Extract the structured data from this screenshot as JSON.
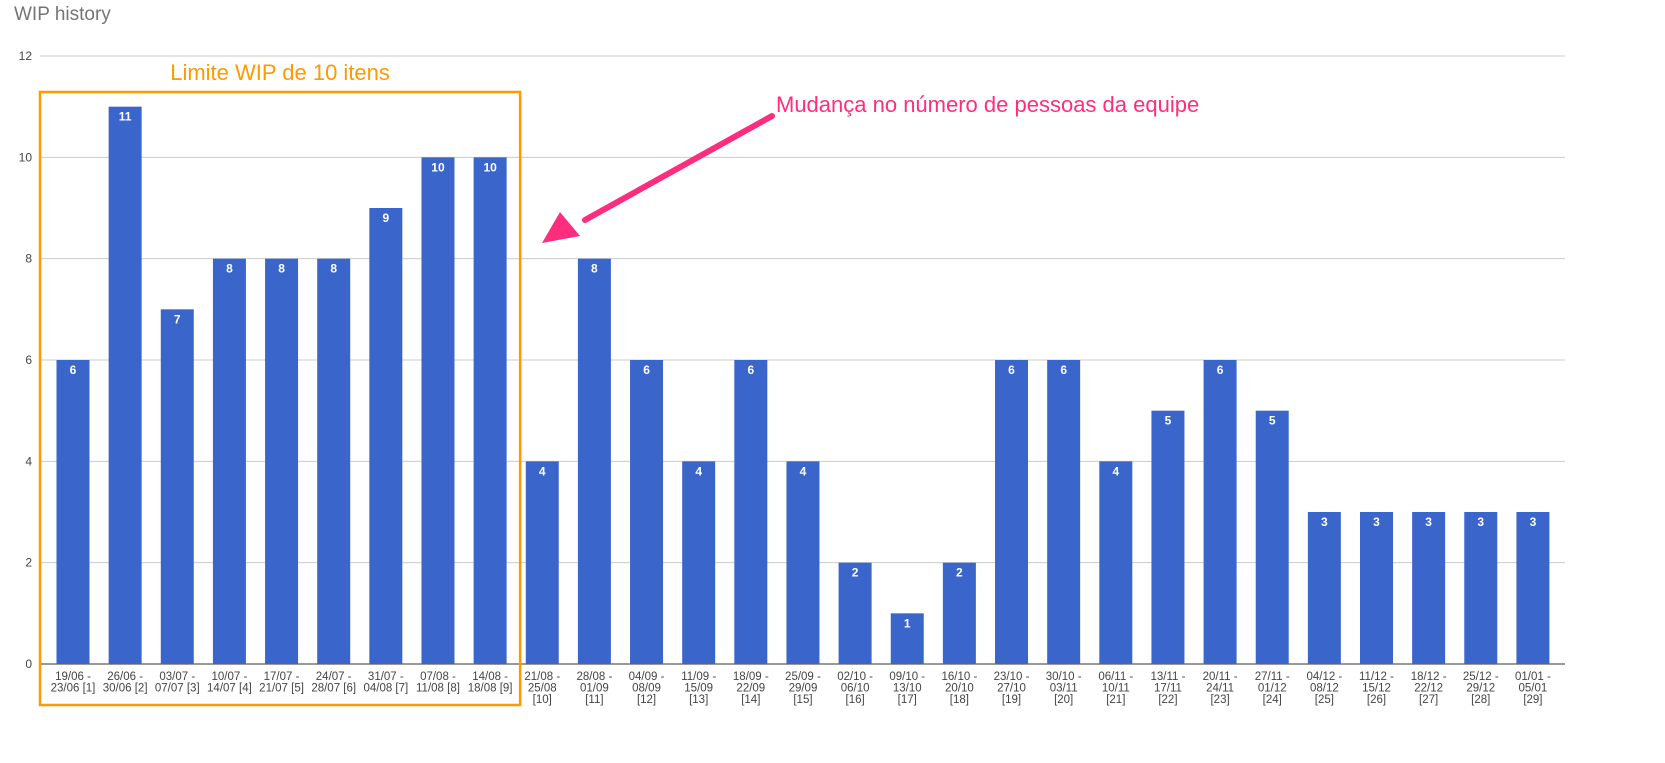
{
  "chart_data": {
    "type": "bar",
    "title": "WIP history",
    "categories": [
      [
        "19/06 -",
        "23/06 [1]"
      ],
      [
        "26/06 -",
        "30/06 [2]"
      ],
      [
        "03/07 -",
        "07/07 [3]"
      ],
      [
        "10/07 -",
        "14/07 [4]"
      ],
      [
        "17/07 -",
        "21/07 [5]"
      ],
      [
        "24/07 -",
        "28/07 [6]"
      ],
      [
        "31/07 -",
        "04/08 [7]"
      ],
      [
        "07/08 -",
        "11/08 [8]"
      ],
      [
        "14/08 -",
        "18/08 [9]"
      ],
      [
        "21/08 -",
        "25/08",
        "[10]"
      ],
      [
        "28/08 -",
        "01/09",
        "[11]"
      ],
      [
        "04/09 -",
        "08/09",
        "[12]"
      ],
      [
        "11/09 -",
        "15/09",
        "[13]"
      ],
      [
        "18/09 -",
        "22/09",
        "[14]"
      ],
      [
        "25/09 -",
        "29/09",
        "[15]"
      ],
      [
        "02/10 -",
        "06/10",
        "[16]"
      ],
      [
        "09/10 -",
        "13/10",
        "[17]"
      ],
      [
        "16/10 -",
        "20/10",
        "[18]"
      ],
      [
        "23/10 -",
        "27/10",
        "[19]"
      ],
      [
        "30/10 -",
        "03/11",
        "[20]"
      ],
      [
        "06/11 -",
        "10/11",
        "[21]"
      ],
      [
        "13/11 -",
        "17/11",
        "[22]"
      ],
      [
        "20/11 -",
        "24/11",
        "[23]"
      ],
      [
        "27/11 -",
        "01/12",
        "[24]"
      ],
      [
        "04/12 -",
        "08/12",
        "[25]"
      ],
      [
        "11/12 -",
        "15/12",
        "[26]"
      ],
      [
        "18/12 -",
        "22/12",
        "[27]"
      ],
      [
        "25/12 -",
        "29/12",
        "[28]"
      ],
      [
        "01/01 -",
        "05/01",
        "[29]"
      ]
    ],
    "values": [
      6,
      11,
      7,
      8,
      8,
      8,
      9,
      10,
      10,
      4,
      8,
      6,
      4,
      6,
      4,
      2,
      1,
      2,
      6,
      6,
      4,
      5,
      6,
      5,
      3,
      3,
      3,
      3,
      3
    ],
    "ylim": [
      0,
      12
    ],
    "yticks": [
      0,
      2,
      4,
      6,
      8,
      10,
      12
    ],
    "grid": true,
    "bar_color": "#3a66cc",
    "annotations": {
      "wip_limit_label": "Limite WIP de 10 itens",
      "wip_limit_color": "#ff9900",
      "wip_limit_range": [
        1,
        9
      ],
      "team_change_label": "Mudança no número de pessoas da equipe",
      "team_change_color": "#ff2d7d"
    }
  }
}
